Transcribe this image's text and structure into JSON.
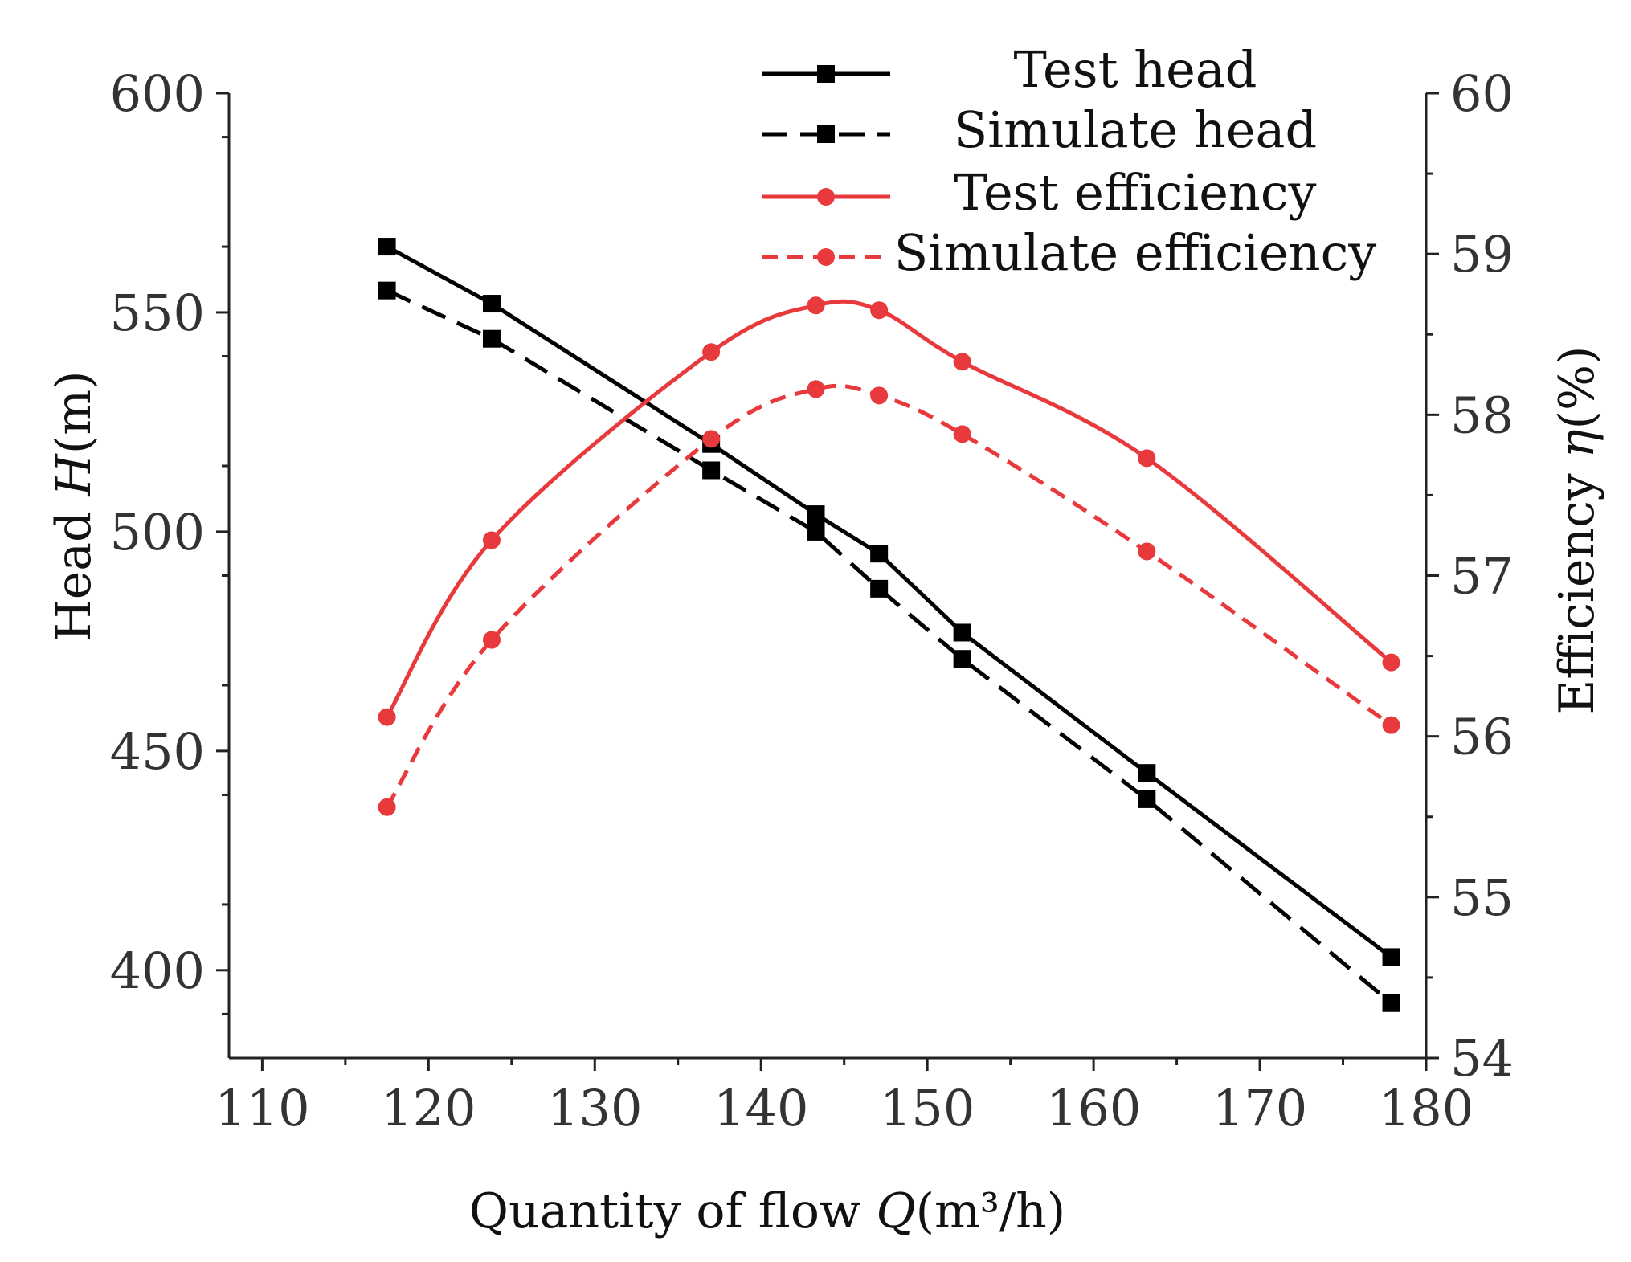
{
  "chart_data": {
    "type": "line",
    "title": "",
    "xlabel": {
      "prefix": "Quantity of flow ",
      "symbol": "Q",
      "suffix": "(m³/h)"
    },
    "ylabel": {
      "prefix": "Head ",
      "symbol": "H",
      "suffix": "(m)"
    },
    "y2label": {
      "prefix": "Efficiency ",
      "symbol": "η",
      "suffix": "(%)"
    },
    "xlim": [
      108,
      180
    ],
    "ylim": [
      380,
      600
    ],
    "y2lim": [
      54,
      60
    ],
    "x_ticks": [
      110,
      120,
      130,
      140,
      150,
      160,
      170,
      180
    ],
    "y_ticks": [
      400,
      450,
      500,
      550,
      600
    ],
    "y2_ticks": [
      54,
      55,
      56,
      57,
      58,
      59,
      60
    ],
    "legend_position": "top-center",
    "series": [
      {
        "name": "Test head",
        "axis": "left",
        "color": "#000000",
        "line": "solid",
        "marker": "square",
        "x": [
          117.5,
          123.8,
          137.0,
          143.3,
          147.1,
          152.1,
          163.2,
          177.9
        ],
        "values": [
          565.0,
          552.0,
          520.0,
          504.0,
          495.0,
          477.0,
          445.0,
          403.0
        ]
      },
      {
        "name": "Simulate head",
        "axis": "left",
        "color": "#000000",
        "line": "dashed",
        "marker": "square",
        "x": [
          117.5,
          123.8,
          137.0,
          143.3,
          147.1,
          152.1,
          163.2,
          177.9
        ],
        "values": [
          555.0,
          544.0,
          514.0,
          500.0,
          487.0,
          471.0,
          439.0,
          392.5
        ]
      },
      {
        "name": "Test efficiency",
        "axis": "right",
        "color": "#e8393c",
        "line": "solid",
        "marker": "circle",
        "x": [
          117.5,
          123.8,
          137.0,
          143.3,
          147.1,
          152.1,
          163.2,
          177.9
        ],
        "values": [
          56.12,
          57.22,
          58.39,
          58.68,
          58.65,
          58.33,
          57.73,
          56.46
        ]
      },
      {
        "name": "Simulate efficiency",
        "axis": "right",
        "color": "#e8393c",
        "line": "dashed",
        "marker": "circle",
        "x": [
          117.5,
          123.8,
          137.0,
          143.3,
          147.1,
          152.1,
          163.2,
          177.9
        ],
        "values": [
          55.56,
          56.6,
          57.85,
          58.16,
          58.12,
          57.88,
          57.15,
          56.07
        ]
      }
    ]
  }
}
